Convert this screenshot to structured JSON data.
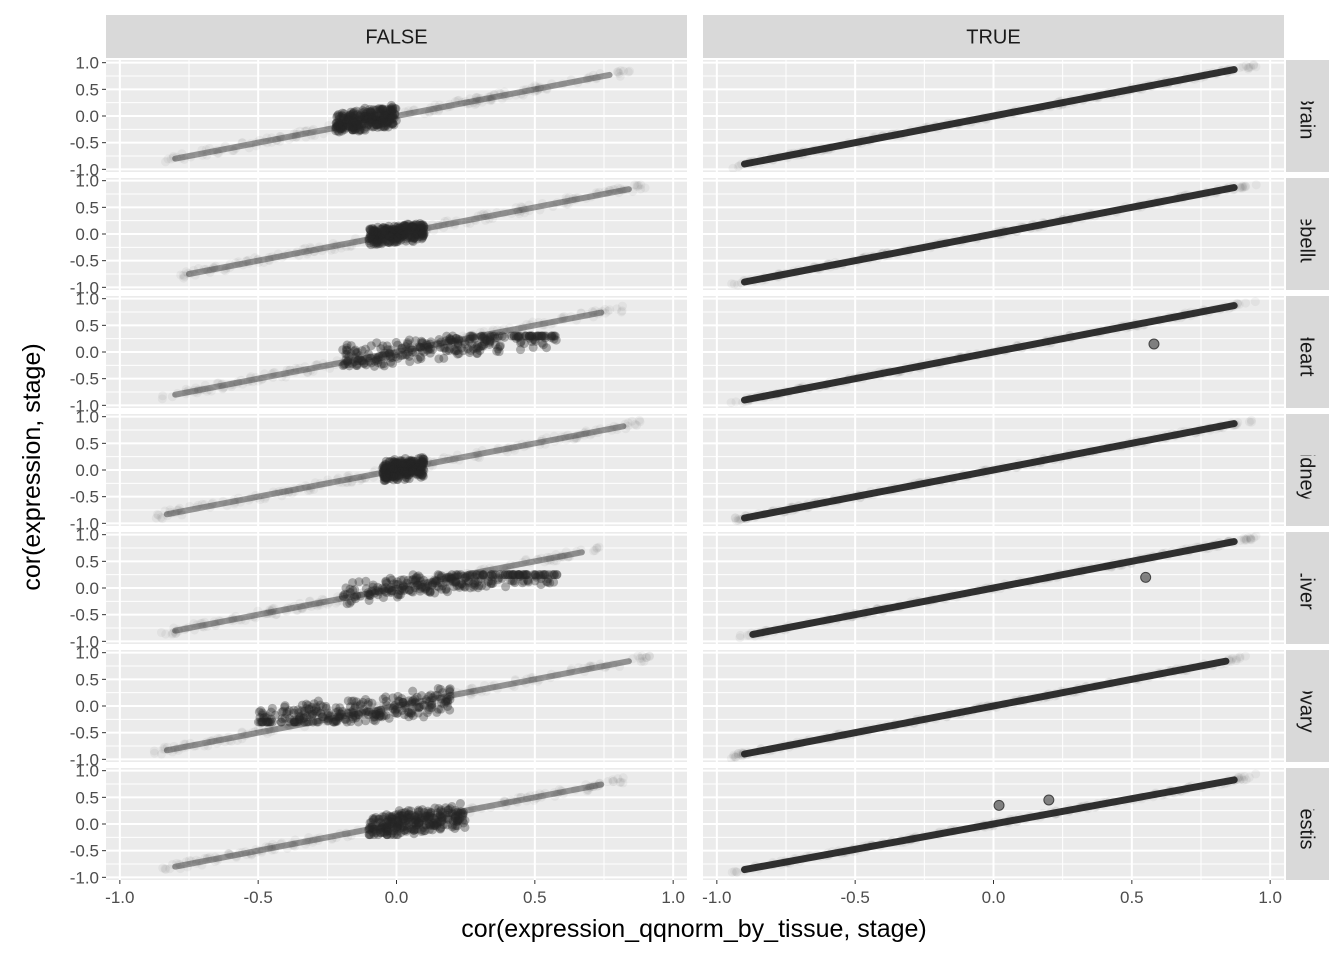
{
  "chart_data": {
    "type": "scatter",
    "xlabel": "cor(expression_qqnorm_by_tissue, stage)",
    "ylabel": "cor(expression, stage)",
    "xlim": [
      -1.05,
      1.05
    ],
    "ylim": [
      -1.05,
      1.05
    ],
    "x_ticks": [
      -1.0,
      -0.5,
      0.0,
      0.5,
      1.0
    ],
    "x_tick_labels": [
      "-1.0",
      "-0.5",
      "0.0",
      "0.5",
      "1.0"
    ],
    "y_ticks": [
      -1.0,
      -0.5,
      0.0,
      0.5,
      1.0
    ],
    "y_tick_labels": [
      "-1.0",
      "-0.5",
      "0.0",
      "0.5",
      "1.0"
    ],
    "grid": true,
    "col_facets": [
      "FALSE",
      "TRUE"
    ],
    "row_facets": [
      "Brain",
      "Cerebellum",
      "Heart",
      "Kidney",
      "Liver",
      "Ovary",
      "Testis"
    ],
    "point_color": "#262626",
    "panel_background": "#ebebeb",
    "strip_background": "#d9d9d9",
    "panels": {
      "FALSE": {
        "Brain": {
          "x_range": [
            -0.85,
            0.85
          ],
          "slope": 1.0,
          "cluster": {
            "x": [
              -0.22,
              0.0
            ],
            "y": [
              -0.3,
              0.25
            ],
            "outliers": [
              [
                -0.15,
                0.2
              ],
              [
                -0.1,
                0.22
              ]
            ]
          }
        },
        "Cerebellum": {
          "x_range": [
            -0.8,
            0.92
          ],
          "slope": 1.0,
          "cluster": {
            "x": [
              -0.1,
              0.1
            ],
            "y": [
              -0.2,
              0.25
            ],
            "outliers": []
          }
        },
        "Heart": {
          "x_range": [
            -0.85,
            0.82
          ],
          "slope": 1.0,
          "cluster": {
            "x": [
              -0.2,
              0.58
            ],
            "y": [
              -0.3,
              0.3
            ],
            "outliers": [
              [
                0.55,
                0.1
              ],
              [
                0.5,
                -0.2
              ],
              [
                0.6,
                0.1
              ]
            ]
          }
        },
        "Kidney": {
          "x_range": [
            -0.88,
            0.9
          ],
          "slope": 1.0,
          "cluster": {
            "x": [
              -0.05,
              0.1
            ],
            "y": [
              -0.2,
              0.3
            ],
            "outliers": []
          }
        },
        "Liver": {
          "x_range": [
            -0.85,
            0.75
          ],
          "slope": 1.0,
          "cluster": {
            "x": [
              -0.2,
              0.58
            ],
            "y": [
              -0.3,
              0.25
            ],
            "outliers": [
              [
                0.5,
                0.15
              ],
              [
                0.58,
                0.15
              ]
            ]
          }
        },
        "Ovary": {
          "x_range": [
            -0.88,
            0.92
          ],
          "slope": 1.0,
          "cluster": {
            "x": [
              -0.5,
              0.2
            ],
            "y": [
              -0.3,
              0.35
            ],
            "outliers": [
              [
                -0.57,
                -0.2
              ],
              [
                -0.52,
                -0.15
              ],
              [
                -0.4,
                0.25
              ],
              [
                -0.32,
                0.35
              ],
              [
                -0.2,
                0.45
              ],
              [
                -0.1,
                0.4
              ]
            ]
          }
        },
        "Testis": {
          "x_range": [
            -0.85,
            0.82
          ],
          "slope": 1.0,
          "cluster": {
            "x": [
              -0.1,
              0.25
            ],
            "y": [
              -0.2,
              0.45
            ],
            "outliers": [
              [
                -0.05,
                -0.2
              ],
              [
                0.05,
                0.35
              ],
              [
                0.2,
                0.5
              ]
            ]
          }
        }
      },
      "TRUE": {
        "Brain": {
          "x_range": [
            -0.95,
            0.95
          ],
          "slope": 1.0,
          "outliers": []
        },
        "Cerebellum": {
          "x_range": [
            -0.95,
            0.95
          ],
          "slope": 1.0,
          "outliers": []
        },
        "Heart": {
          "x_range": [
            -0.95,
            0.95
          ],
          "slope": 1.0,
          "outliers": [
            [
              0.58,
              0.15
            ]
          ]
        },
        "Kidney": {
          "x_range": [
            -0.95,
            0.95
          ],
          "slope": 1.0,
          "outliers": []
        },
        "Liver": {
          "x_range": [
            -0.92,
            0.95
          ],
          "slope": 1.0,
          "outliers": [
            [
              0.55,
              0.2
            ]
          ]
        },
        "Ovary": {
          "x_range": [
            -0.95,
            0.92
          ],
          "slope": 1.0,
          "outliers": []
        },
        "Testis": {
          "x_range": [
            -0.95,
            0.95
          ],
          "slope": 0.95,
          "outliers": [
            [
              0.02,
              0.35
            ],
            [
              0.2,
              0.45
            ]
          ]
        }
      }
    }
  }
}
